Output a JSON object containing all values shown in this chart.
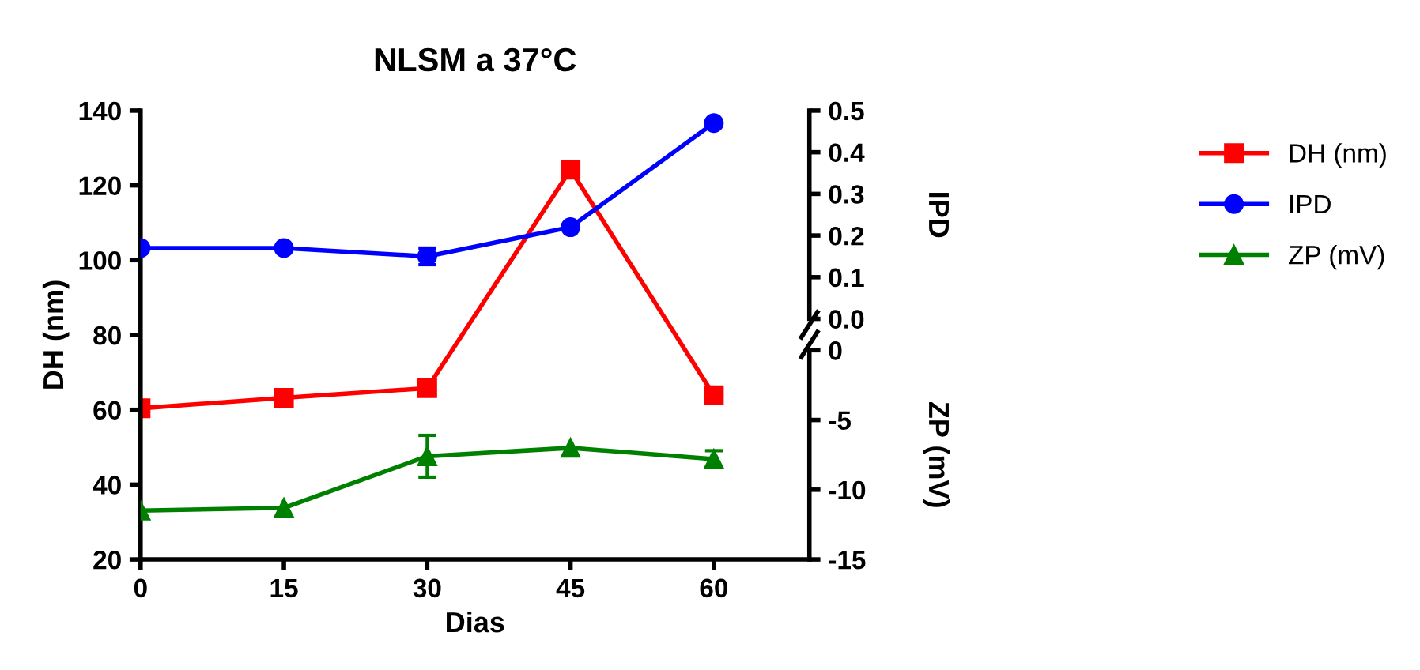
{
  "chart_data": {
    "type": "line",
    "title": "NLSM a 37°C",
    "xlabel": "Dias",
    "ylabel": "DH (nm)",
    "y2label": "IPD",
    "y3label": "ZP (mV)",
    "x": [
      0,
      15,
      30,
      45,
      60
    ],
    "xlim": [
      0,
      70
    ],
    "xticks": [
      0,
      15,
      30,
      45,
      60
    ],
    "ylim": [
      20,
      140
    ],
    "yticks": [
      20,
      40,
      60,
      80,
      100,
      120,
      140
    ],
    "y2lim": [
      0,
      0.5
    ],
    "y2ticks": [
      {
        "value": 0,
        "label": "0.0"
      },
      0.1,
      0.2,
      0.3,
      0.4,
      0.5
    ],
    "y3lim": [
      -15,
      0
    ],
    "y3ticks": [
      -15,
      -10,
      -5,
      0
    ],
    "legend": "right",
    "grid": false,
    "series": [
      {
        "name": "DH (nm)",
        "color": "#ff0000",
        "marker": "square",
        "axis": "y",
        "values": [
          60.4,
          63.2,
          65.8,
          124.2,
          63.9
        ]
      },
      {
        "name": "IPD",
        "color": "#0000ff",
        "marker": "circle",
        "axis": "y2",
        "values": [
          0.17,
          0.17,
          0.15,
          0.22,
          0.47
        ],
        "errors": [
          null,
          null,
          0.02,
          null,
          null
        ]
      },
      {
        "name": "ZP (mV)",
        "color": "#008000",
        "marker": "triangle",
        "axis": "y3",
        "values": [
          -11.5,
          -11.3,
          -7.6,
          -7.0,
          -7.8
        ],
        "errors": [
          null,
          null,
          1.5,
          null,
          0.6
        ]
      }
    ]
  }
}
